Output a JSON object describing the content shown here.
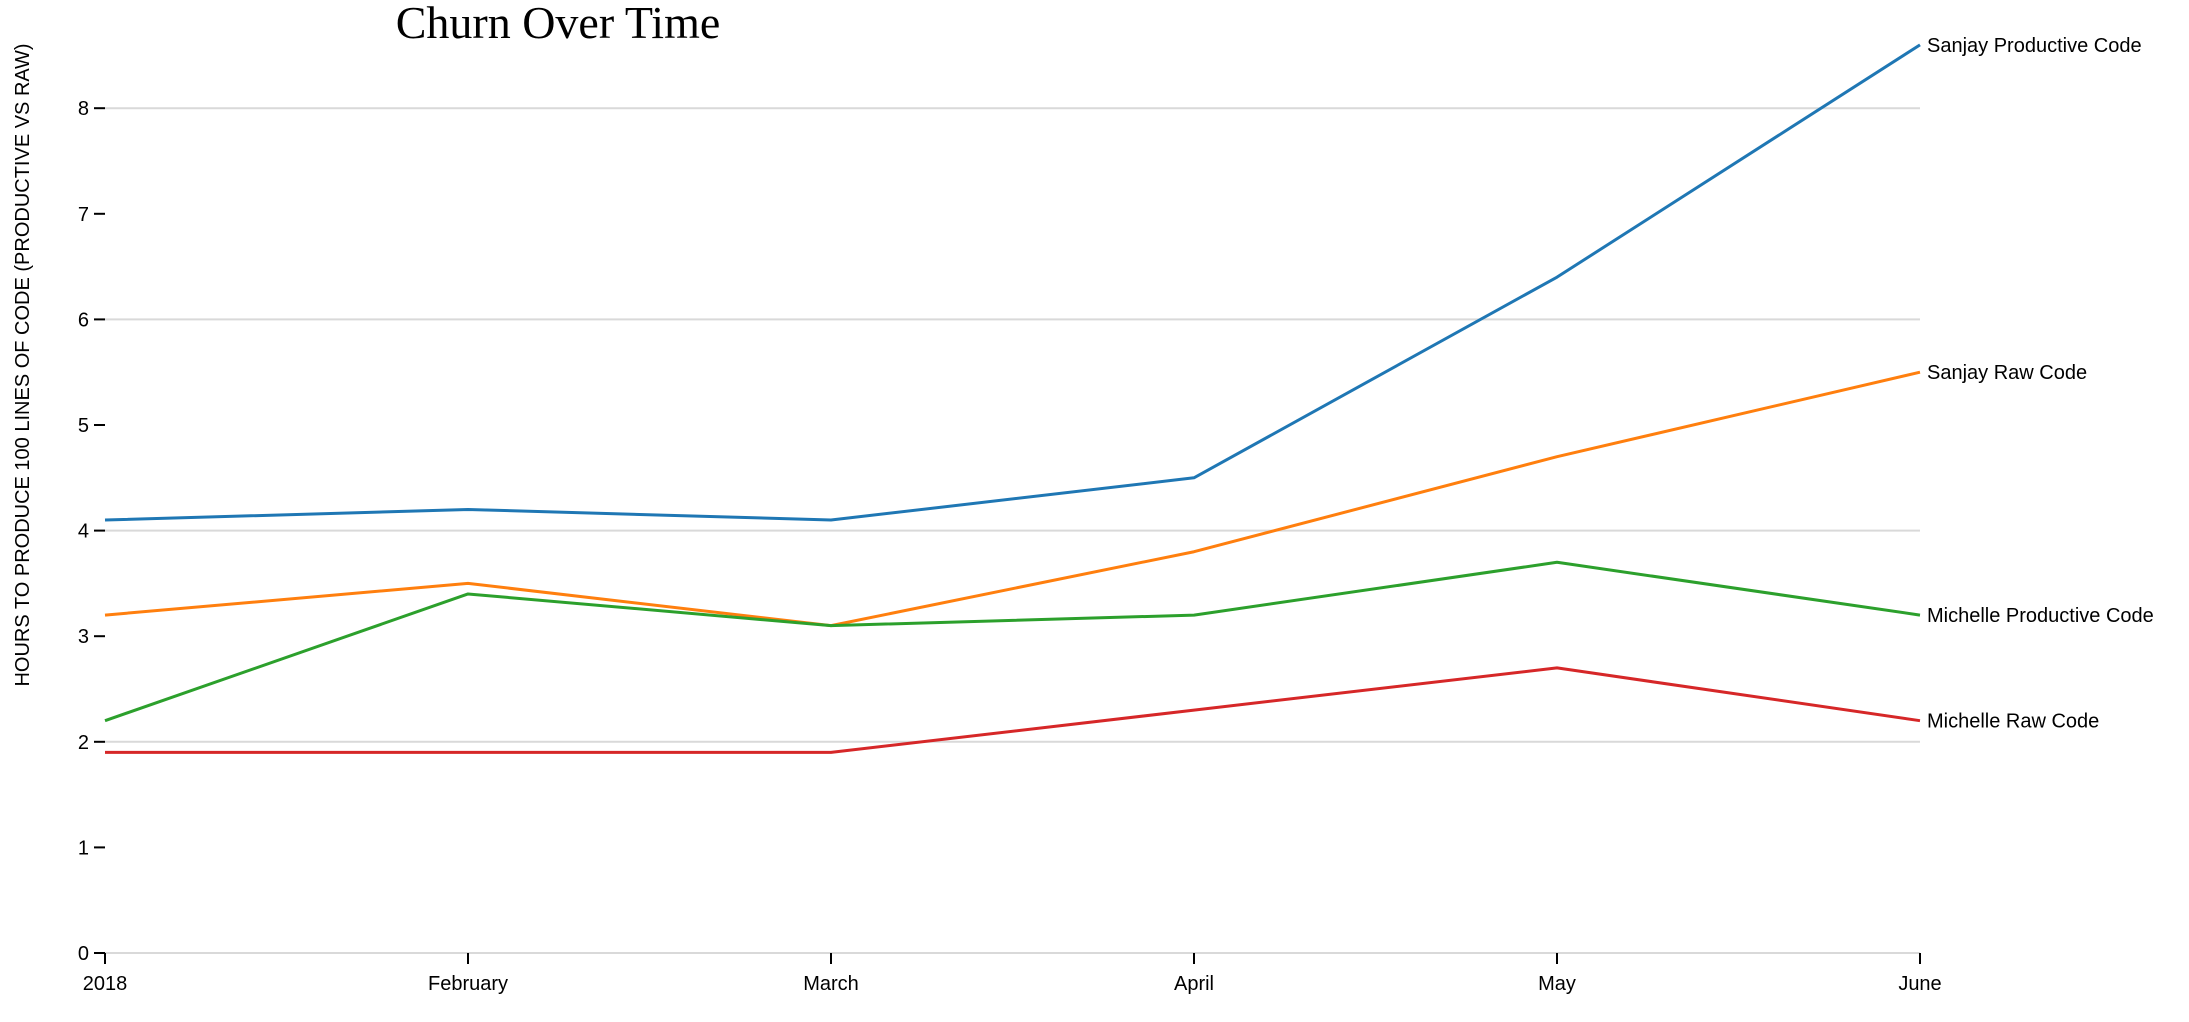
{
  "chart_data": {
    "type": "line",
    "title": "Churn Over Time",
    "xlabel": "",
    "ylabel": "HOURS TO PRODUCE 100 LINES OF CODE (PRODUCTIVE VS RAW)",
    "categories": [
      "2018",
      "February",
      "March",
      "April",
      "May",
      "June"
    ],
    "ylim": [
      0,
      8.6
    ],
    "yticks": [
      0,
      1,
      2,
      3,
      4,
      5,
      6,
      7,
      8
    ],
    "grid": "horizontal at 2, 4, 6, 8",
    "gridlines": [
      2,
      4,
      6,
      8
    ],
    "legend": "inline labels at right end of each line",
    "series": [
      {
        "name": "Sanjay Productive Code",
        "color": "#1f77b4",
        "values": [
          4.1,
          4.2,
          4.1,
          4.5,
          6.4,
          8.6
        ]
      },
      {
        "name": "Sanjay Raw Code",
        "color": "#ff7f0e",
        "values": [
          3.2,
          3.5,
          3.1,
          3.8,
          4.7,
          5.5
        ]
      },
      {
        "name": "Michelle Productive Code",
        "color": "#2ca02c",
        "values": [
          2.2,
          3.4,
          3.1,
          3.2,
          3.7,
          3.2
        ]
      },
      {
        "name": "Michelle Raw Code",
        "color": "#d62728",
        "values": [
          1.9,
          1.9,
          1.9,
          2.3,
          2.7,
          2.2
        ]
      }
    ]
  }
}
